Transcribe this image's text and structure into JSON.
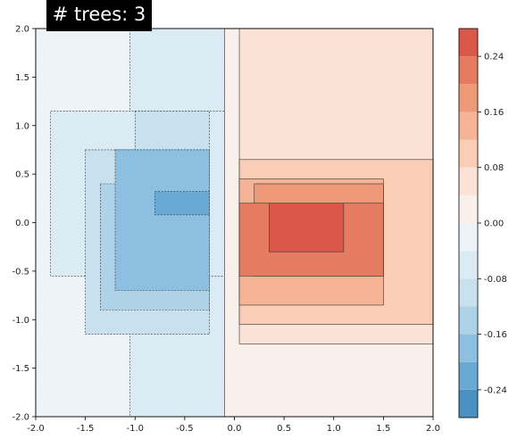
{
  "badge_text": "# trees: 3",
  "chart_data": {
    "type": "contour",
    "xlim": [
      -2.0,
      2.0
    ],
    "ylim": [
      -2.0,
      2.0
    ],
    "x_ticks": [
      "-2.0",
      "-1.5",
      "-1.0",
      "-0.5",
      "0.0",
      "0.5",
      "1.0",
      "1.5",
      "2.0"
    ],
    "y_ticks": [
      "2.0",
      "1.5",
      "1.0",
      "0.5",
      "0.0",
      "-0.5",
      "-1.0",
      "-1.5",
      "-2.0"
    ],
    "colorbar_ticks": [
      "0.24",
      "0.16",
      "0.08",
      "0.00",
      "-0.08",
      "-0.16",
      "-0.24"
    ],
    "colorbar_levels": [
      -0.28,
      -0.24,
      -0.2,
      -0.16,
      -0.12,
      -0.08,
      -0.04,
      0.0,
      0.04,
      0.08,
      0.12,
      0.16,
      0.2,
      0.24,
      0.28
    ],
    "colormap": "RdBu_r",
    "level_colors": [
      "#4a90c2",
      "#6aa9d4",
      "#8dc0e0",
      "#aed3e8",
      "#c9e1ef",
      "#dbebf4",
      "#eef3f7",
      "#f9f0ec",
      "#fbe2d6",
      "#f9cdb6",
      "#f4b495",
      "#ee9a79",
      "#e57b60",
      "#d9584a"
    ],
    "regions": [
      {
        "x": [
          -2.0,
          -0.1
        ],
        "y": [
          -2.0,
          2.0
        ],
        "level": 6
      },
      {
        "x": [
          -1.05,
          -0.1
        ],
        "y": [
          -2.0,
          2.0
        ],
        "level": 5
      },
      {
        "x": [
          -1.85,
          -0.1
        ],
        "y": [
          -0.55,
          1.15
        ],
        "level": 5
      },
      {
        "x": [
          -1.5,
          -0.25
        ],
        "y": [
          -1.15,
          0.75
        ],
        "level": 4
      },
      {
        "x": [
          -1.0,
          -0.25
        ],
        "y": [
          0.75,
          1.15
        ],
        "level": 4
      },
      {
        "x": [
          -1.35,
          -0.25
        ],
        "y": [
          -0.9,
          0.4
        ],
        "level": 3
      },
      {
        "x": [
          -1.2,
          -0.25
        ],
        "y": [
          -0.7,
          0.75
        ],
        "level": 2
      },
      {
        "x": [
          -0.8,
          -0.25
        ],
        "y": [
          0.08,
          0.32
        ],
        "level": 1
      },
      {
        "x": [
          -0.1,
          2.0
        ],
        "y": [
          -2.0,
          2.0
        ],
        "level": 7
      },
      {
        "x": [
          0.05,
          2.0
        ],
        "y": [
          -1.25,
          2.0
        ],
        "level": 8
      },
      {
        "x": [
          0.05,
          2.0
        ],
        "y": [
          -1.05,
          0.65
        ],
        "level": 9
      },
      {
        "x": [
          0.05,
          1.5
        ],
        "y": [
          -0.85,
          0.45
        ],
        "level": 10
      },
      {
        "x": [
          0.2,
          1.5
        ],
        "y": [
          -0.55,
          0.4
        ],
        "level": 11
      },
      {
        "x": [
          0.05,
          1.5
        ],
        "y": [
          -0.55,
          0.2
        ],
        "level": 12
      },
      {
        "x": [
          0.35,
          1.1
        ],
        "y": [
          -0.3,
          0.2
        ],
        "level": 13
      }
    ]
  }
}
